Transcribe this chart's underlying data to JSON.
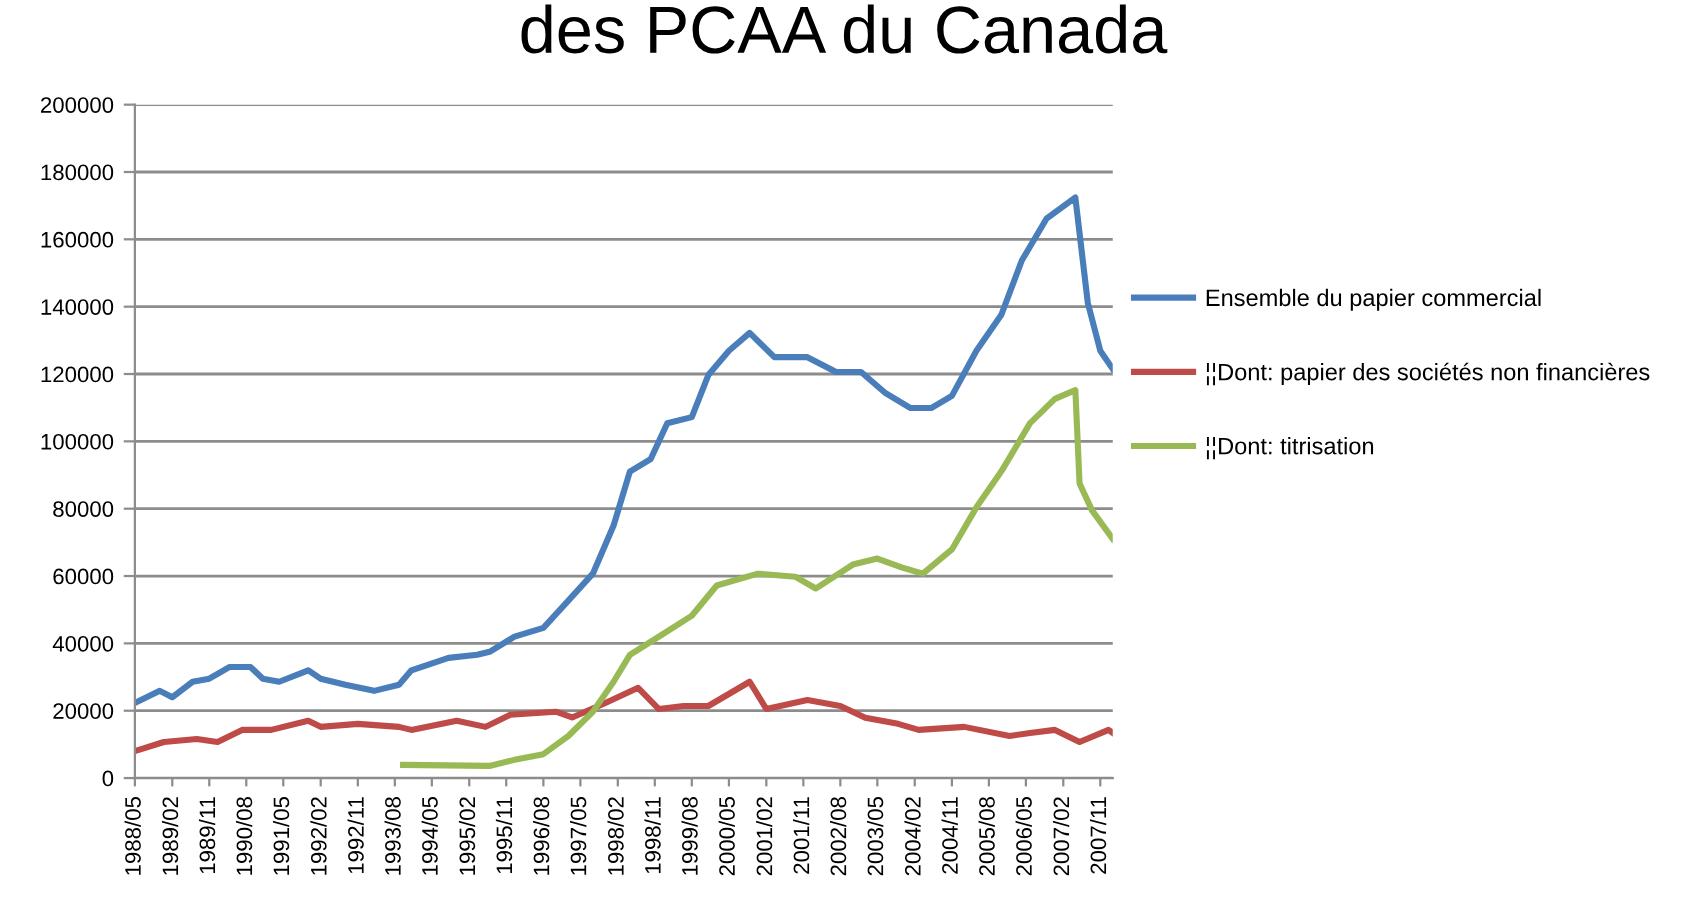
{
  "chart_data": {
    "type": "line",
    "title": "des PCAA du Canada",
    "series": [
      {
        "name": "Ensemble du papier commercial",
        "color": "#4a7ebb",
        "x": [
          "1988-05",
          "1988-11",
          "1989-02",
          "1989-07",
          "1989-11",
          "1990-04",
          "1990-09",
          "1990-12",
          "1991-04",
          "1991-11",
          "1992-02",
          "1992-08",
          "1993-03",
          "1993-09",
          "1993-12",
          "1994-09",
          "1995-04",
          "1995-07",
          "1996-01",
          "1996-08",
          "1997-02",
          "1997-08",
          "1998-01",
          "1998-05",
          "1998-10",
          "1999-02",
          "1999-08",
          "1999-12",
          "2000-05",
          "2000-10",
          "2001-04",
          "2001-12",
          "2002-07",
          "2003-01",
          "2003-07",
          "2004-01",
          "2004-06",
          "2004-11",
          "2005-05",
          "2005-11",
          "2006-04",
          "2006-10",
          "2007-05",
          "2007-08",
          "2007-11",
          "2008-02"
        ],
        "values": [
          22300,
          25900,
          24000,
          28600,
          29500,
          33000,
          33000,
          29500,
          28600,
          32000,
          29500,
          27700,
          25900,
          27700,
          32000,
          35700,
          36600,
          37500,
          42000,
          44600,
          52700,
          60700,
          75000,
          91000,
          94700,
          105400,
          107200,
          119700,
          126900,
          132200,
          125000,
          125000,
          120600,
          120600,
          114300,
          109900,
          109900,
          113500,
          126900,
          137600,
          153700,
          166200,
          172400,
          141100,
          126900,
          121500
        ]
      },
      {
        "name": "¦¦Dont: papier des sociétés non financières",
        "color": "#be4b48",
        "x": [
          "1988-05",
          "1988-12",
          "1989-08",
          "1990-01",
          "1990-07",
          "1991-02",
          "1991-11",
          "1992-02",
          "1992-11",
          "1993-09",
          "1993-12",
          "1994-11",
          "1995-06",
          "1995-12",
          "1996-11",
          "1997-03",
          "1997-11",
          "1998-07",
          "1998-12",
          "1999-06",
          "1999-12",
          "2000-10",
          "2001-02",
          "2001-12",
          "2002-08",
          "2003-02",
          "2003-10",
          "2004-03",
          "2005-02",
          "2006-01",
          "2006-06",
          "2006-12",
          "2007-06",
          "2008-01",
          "2008-02"
        ],
        "values": [
          8000,
          10700,
          11600,
          10700,
          14300,
          14300,
          17000,
          15200,
          16100,
          15200,
          14300,
          17000,
          15200,
          18800,
          19700,
          18000,
          22300,
          26800,
          20500,
          21400,
          21400,
          28600,
          20500,
          23200,
          21400,
          17900,
          16100,
          14300,
          15200,
          12500,
          13400,
          14300,
          10700,
          14300,
          13400
        ]
      },
      {
        "name": "¦¦Dont: titrisation",
        "color": "#98b954",
        "x": [
          "1993-10",
          "1995-07",
          "1996-01",
          "1996-08",
          "1997-02",
          "1997-08",
          "1998-01",
          "1998-05",
          "1998-12",
          "1999-08",
          "2000-02",
          "2000-12",
          "2001-09",
          "2002-02",
          "2002-11",
          "2003-05",
          "2003-11",
          "2004-04",
          "2004-11",
          "2005-05",
          "2005-11",
          "2006-06",
          "2006-12",
          "2007-05",
          "2007-06",
          "2007-09",
          "2008-02"
        ],
        "values": [
          3900,
          3600,
          5400,
          7100,
          12500,
          19700,
          28600,
          36600,
          42000,
          48200,
          57200,
          60700,
          59800,
          56300,
          63400,
          65200,
          62500,
          60700,
          67900,
          80400,
          91100,
          105400,
          112600,
          115200,
          87500,
          79500,
          71000
        ]
      }
    ],
    "xlim": [
      "1988-05",
      "2008-02"
    ],
    "xticks": [
      {
        "value": "1988-05",
        "label": "1988/05"
      },
      {
        "value": "1989-02",
        "label": "1989/02"
      },
      {
        "value": "1989-11",
        "label": "1989/11"
      },
      {
        "value": "1990-08",
        "label": "1990/08"
      },
      {
        "value": "1991-05",
        "label": "1991/05"
      },
      {
        "value": "1992-02",
        "label": "1992/02"
      },
      {
        "value": "1992-11",
        "label": "1992/11"
      },
      {
        "value": "1993-08",
        "label": "1993/08"
      },
      {
        "value": "1994-05",
        "label": "1994/05"
      },
      {
        "value": "1995-02",
        "label": "1995/02"
      },
      {
        "value": "1995-11",
        "label": "1995/11"
      },
      {
        "value": "1996-08",
        "label": "1996/08"
      },
      {
        "value": "1997-05",
        "label": "1997/05"
      },
      {
        "value": "1998-02",
        "label": "1998/02"
      },
      {
        "value": "1998-11",
        "label": "1998/11"
      },
      {
        "value": "1999-08",
        "label": "1999/08"
      },
      {
        "value": "2000-05",
        "label": "2000/05"
      },
      {
        "value": "2001-02",
        "label": "2001/02"
      },
      {
        "value": "2001-11",
        "label": "2001/11"
      },
      {
        "value": "2002-08",
        "label": "2002/08"
      },
      {
        "value": "2003-05",
        "label": "2003/05"
      },
      {
        "value": "2004-02",
        "label": "2004/02"
      },
      {
        "value": "2004-11",
        "label": "2004/11"
      },
      {
        "value": "2005-08",
        "label": "2005/08"
      },
      {
        "value": "2006-05",
        "label": "2006/05"
      },
      {
        "value": "2007-02",
        "label": "2007/02"
      },
      {
        "value": "2007-11",
        "label": "2007/11"
      }
    ],
    "ylim": [
      0,
      200000
    ],
    "yticks": [
      0,
      20000,
      40000,
      60000,
      80000,
      100000,
      120000,
      140000,
      160000,
      180000,
      200000
    ],
    "grid": "y",
    "legend": "right",
    "marker": "none",
    "line_style": "solid"
  }
}
